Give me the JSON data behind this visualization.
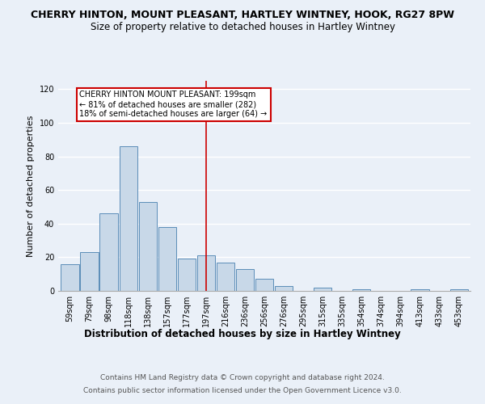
{
  "title": "CHERRY HINTON, MOUNT PLEASANT, HARTLEY WINTNEY, HOOK, RG27 8PW",
  "subtitle": "Size of property relative to detached houses in Hartley Wintney",
  "xlabel": "Distribution of detached houses by size in Hartley Wintney",
  "ylabel": "Number of detached properties",
  "footer1": "Contains HM Land Registry data © Crown copyright and database right 2024.",
  "footer2": "Contains public sector information licensed under the Open Government Licence v3.0.",
  "categories": [
    "59sqm",
    "79sqm",
    "98sqm",
    "118sqm",
    "138sqm",
    "157sqm",
    "177sqm",
    "197sqm",
    "216sqm",
    "236sqm",
    "256sqm",
    "276sqm",
    "295sqm",
    "315sqm",
    "335sqm",
    "354sqm",
    "374sqm",
    "394sqm",
    "413sqm",
    "433sqm",
    "453sqm"
  ],
  "values": [
    16,
    23,
    46,
    86,
    53,
    38,
    19,
    21,
    17,
    13,
    7,
    3,
    0,
    2,
    0,
    1,
    0,
    0,
    1,
    0,
    1
  ],
  "bar_color": "#c8d8e8",
  "bar_edge_color": "#5b8db8",
  "annotation_line_index": 7,
  "annotation_text_line1": "CHERRY HINTON MOUNT PLEASANT: 199sqm",
  "annotation_text_line2": "← 81% of detached houses are smaller (282)",
  "annotation_text_line3": "18% of semi-detached houses are larger (64) →",
  "annotation_box_color": "#ffffff",
  "annotation_box_edge": "#cc0000",
  "red_line_color": "#cc0000",
  "ylim": [
    0,
    125
  ],
  "yticks": [
    0,
    20,
    40,
    60,
    80,
    100,
    120
  ],
  "bg_color": "#eaf0f8",
  "plot_bg_color": "#eaf0f8",
  "grid_color": "#ffffff",
  "title_fontsize": 9,
  "subtitle_fontsize": 8.5,
  "ylabel_fontsize": 8,
  "xlabel_fontsize": 8.5,
  "tick_fontsize": 7,
  "annotation_fontsize": 7,
  "footer_fontsize": 6.5
}
